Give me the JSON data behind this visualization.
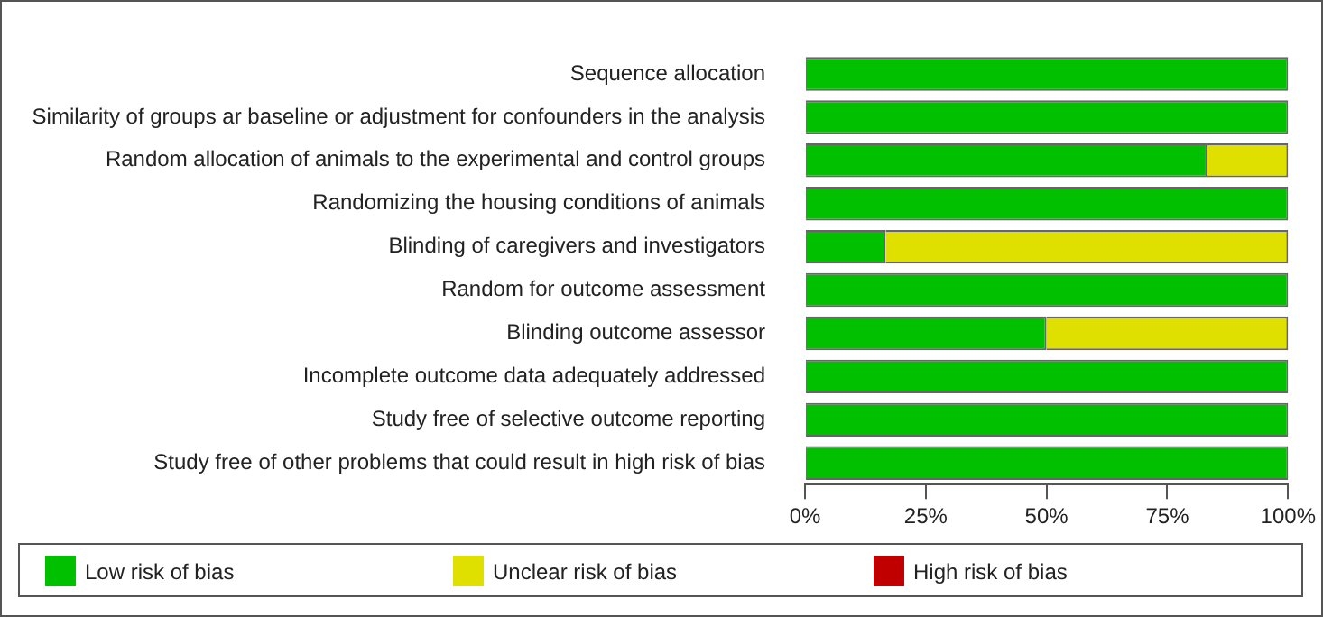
{
  "chart_data": {
    "type": "bar",
    "orientation": "horizontal",
    "stacked": true,
    "categories": [
      "Sequence allocation",
      "Similarity of groups ar baseline or adjustment for confounders in the analysis",
      "Random allocation of animals to the experimental and control groups",
      "Randomizing the housing conditions of animals",
      "Blinding of caregivers and investigators",
      "Random for outcome assessment",
      "Blinding outcome assessor",
      "Incomplete outcome data adequately addressed",
      "Study free of selective outcome reporting",
      "Study free of other problems that could result in high risk of bias"
    ],
    "series": [
      {
        "name": "Low risk of bias",
        "color": "#00c000",
        "values": [
          100,
          100,
          83.3,
          100,
          16.7,
          100,
          50,
          100,
          100,
          100
        ]
      },
      {
        "name": "Unclear risk of bias",
        "color": "#e0e000",
        "values": [
          0,
          0,
          16.7,
          0,
          83.3,
          0,
          50,
          0,
          0,
          0
        ]
      },
      {
        "name": "High risk of bias",
        "color": "#c00000",
        "values": [
          0,
          0,
          0,
          0,
          0,
          0,
          0,
          0,
          0,
          0
        ]
      }
    ],
    "xlim": [
      0,
      100
    ],
    "xticks": [
      {
        "value": 0,
        "label": "0%"
      },
      {
        "value": 25,
        "label": "25%"
      },
      {
        "value": 50,
        "label": "50%"
      },
      {
        "value": 75,
        "label": "75%"
      },
      {
        "value": 100,
        "label": "100%"
      }
    ],
    "grid": false,
    "legend": "bottom"
  }
}
